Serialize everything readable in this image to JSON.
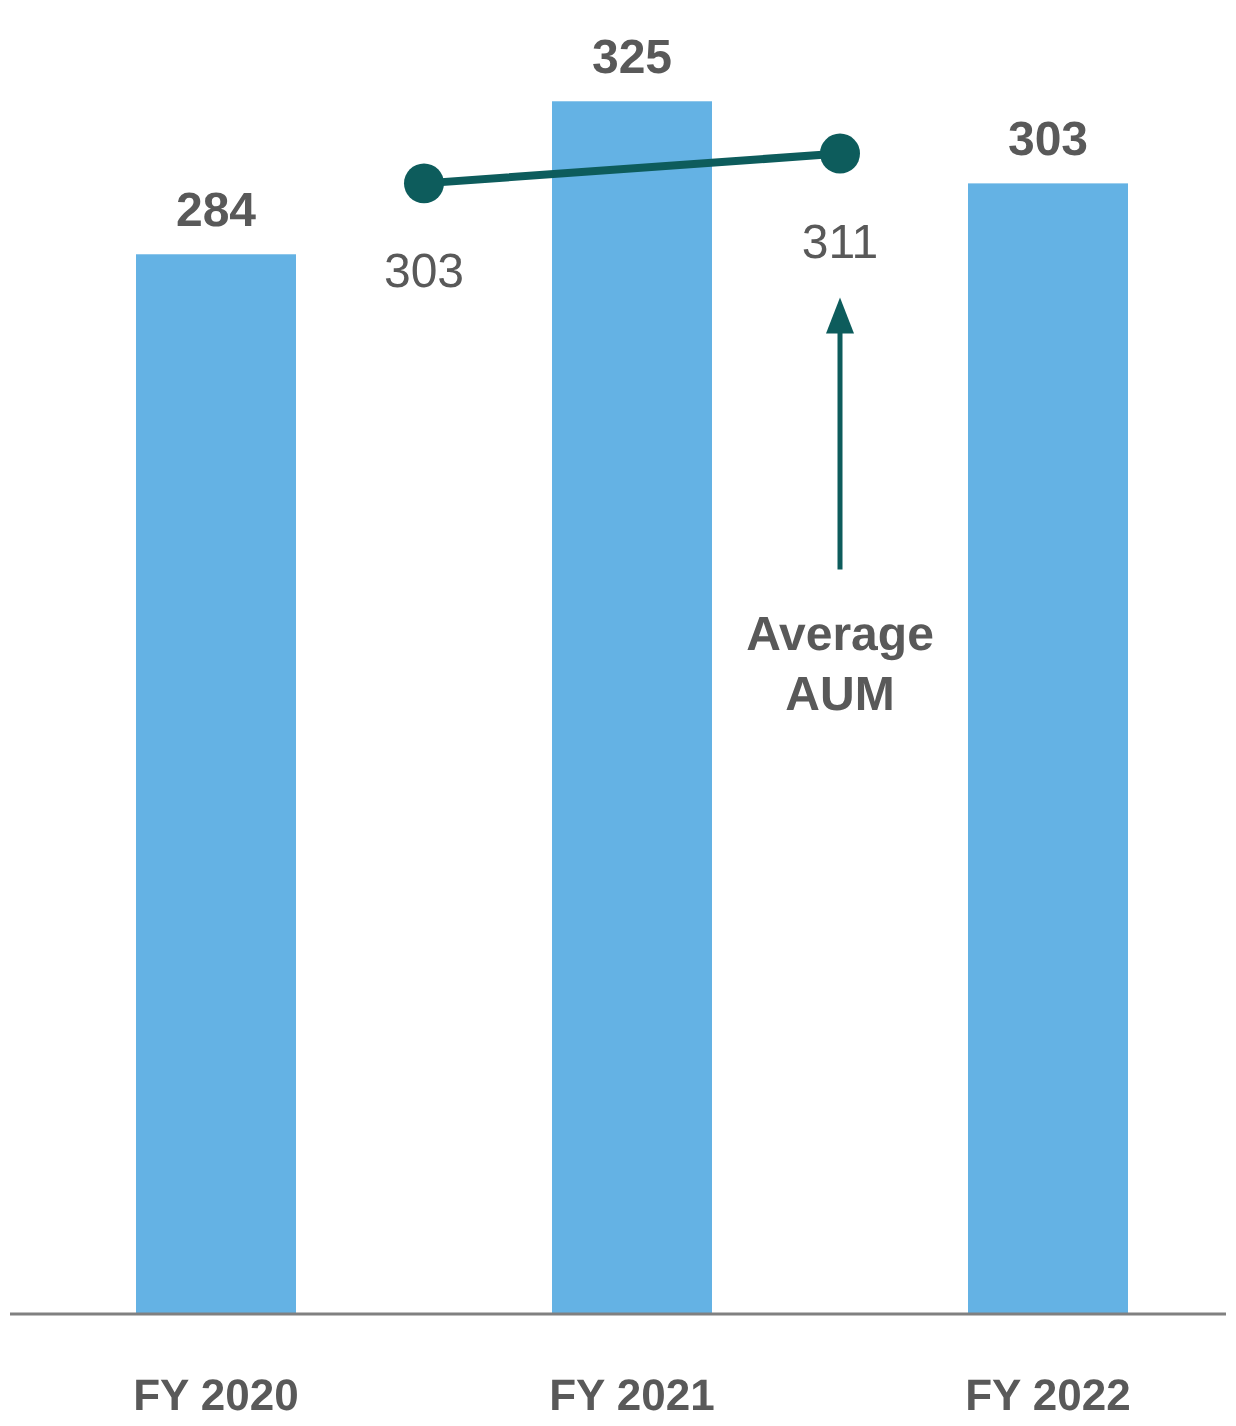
{
  "chart_data": {
    "type": "bar",
    "categories": [
      "FY 2020",
      null,
      "FY 2021",
      null,
      "FY 2022"
    ],
    "series": [
      {
        "color": "#64b2e4",
        "values": [
          284,
          null,
          325,
          null,
          303
        ]
      },
      {
        "type": "line",
        "color": "#0d5c5c",
        "values": [
          null,
          303,
          null,
          311,
          null
        ]
      }
    ],
    "ylim": [
      0,
      350
    ],
    "tick_labels": "x",
    "data_labels": true,
    "marker": "circle",
    "annotations": [
      "Average AUM"
    ]
  }
}
